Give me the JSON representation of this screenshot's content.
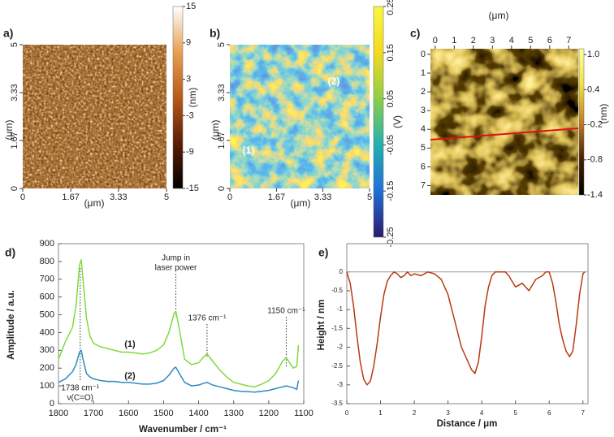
{
  "chart_data": [
    {
      "type": "image",
      "panel_label": "a)",
      "xlabel": "(μm)",
      "ylabel": "(μm)",
      "xlim": [
        0,
        5
      ],
      "ylim": [
        0,
        5
      ],
      "xticks": [
        0,
        1.67,
        3.33,
        5
      ],
      "yticks": [
        0,
        1.67,
        3.33,
        5
      ],
      "colorbar_label": "(nm)",
      "clim": [
        -15,
        15
      ],
      "cbar_ticks": [
        15,
        9,
        3,
        -3,
        -9,
        -15
      ],
      "colormap": [
        "#000000",
        "#5a1e05",
        "#b85a1a",
        "#e8a050",
        "#ffffff"
      ]
    },
    {
      "type": "image",
      "panel_label": "b)",
      "xlabel": "(μm)",
      "ylabel": "(μm)",
      "xlim": [
        0,
        5
      ],
      "ylim": [
        0,
        5
      ],
      "xticks": [
        0,
        1.67,
        3.33,
        5
      ],
      "yticks": [
        0,
        1.67,
        3.33,
        5
      ],
      "colorbar_label": "(V)",
      "clim": [
        -0.25,
        0.25
      ],
      "cbar_ticks": [
        0.25,
        0.15,
        0.05,
        -0.05,
        -0.15,
        -0.25
      ],
      "colormap": [
        "#2b1b6e",
        "#1f6fd8",
        "#22b0b0",
        "#8ccf48",
        "#f5d820",
        "#f8f840"
      ],
      "annotations": [
        {
          "text": "(2)"
        },
        {
          "text": "(1)"
        }
      ]
    },
    {
      "type": "image",
      "panel_label": "c)",
      "xlabel": "(μm)",
      "x_axis_position": "top",
      "xlim": [
        -0.25,
        7.5
      ],
      "ylim": [
        7.5,
        -0.3
      ],
      "xticks": [
        0,
        1,
        2,
        3,
        4,
        5,
        6,
        7
      ],
      "yticks": [
        0,
        1,
        2,
        3,
        4,
        5,
        6,
        7
      ],
      "colorbar_label": "(nm)",
      "clim": [
        -1.4,
        1.1
      ],
      "cbar_ticks": [
        {
          "value": 1,
          "label": "1.0"
        },
        0.4,
        -0.2,
        -0.8,
        -1.4
      ],
      "colormap": [
        "#000000",
        "#4a2000",
        "#c08020",
        "#f0e040",
        "#ffffa0"
      ]
    },
    {
      "type": "line",
      "panel_label": "d)",
      "xlabel": "Wavenumber / cm⁻¹",
      "ylabel": "Amplitude / a.u.",
      "xlim": [
        1800,
        1100
      ],
      "ylim": [
        0,
        900
      ],
      "xticks": [
        1800,
        1700,
        1600,
        1500,
        1400,
        1300,
        1200,
        1100
      ],
      "yticks": [
        0,
        100,
        200,
        300,
        400,
        500,
        600,
        700,
        800,
        900
      ],
      "x": [
        1800,
        1780,
        1760,
        1750,
        1740,
        1735,
        1730,
        1720,
        1710,
        1700,
        1680,
        1660,
        1640,
        1620,
        1600,
        1580,
        1560,
        1540,
        1520,
        1500,
        1485,
        1470,
        1465,
        1455,
        1440,
        1420,
        1400,
        1385,
        1376,
        1360,
        1340,
        1320,
        1300,
        1280,
        1260,
        1240,
        1220,
        1200,
        1180,
        1160,
        1150,
        1140,
        1130,
        1120,
        1115
      ],
      "series": [
        {
          "name": "(1)",
          "color": "#7fdb3a",
          "values": [
            250,
            350,
            430,
            550,
            780,
            810,
            700,
            480,
            380,
            340,
            320,
            310,
            300,
            290,
            290,
            285,
            280,
            285,
            300,
            330,
            400,
            510,
            520,
            420,
            250,
            220,
            230,
            265,
            280,
            240,
            190,
            150,
            120,
            110,
            100,
            95,
            110,
            130,
            170,
            240,
            260,
            230,
            200,
            210,
            330
          ]
        },
        {
          "name": "(2)",
          "color": "#2e8bc0",
          "values": [
            120,
            140,
            180,
            220,
            290,
            300,
            250,
            170,
            150,
            140,
            130,
            125,
            125,
            120,
            120,
            115,
            110,
            110,
            115,
            130,
            160,
            200,
            205,
            170,
            120,
            100,
            105,
            115,
            120,
            105,
            95,
            85,
            75,
            70,
            68,
            65,
            70,
            75,
            85,
            95,
            100,
            95,
            90,
            80,
            130
          ]
        }
      ],
      "annotations": [
        {
          "text": [
            "Jump in",
            "laser power"
          ],
          "x": 1465
        },
        {
          "text": [
            "1376 cm⁻¹"
          ],
          "x": 1376
        },
        {
          "text": [
            "1150 cm⁻¹"
          ],
          "x": 1150
        },
        {
          "text": [
            "1738 cm⁻¹",
            "ν(C=O)"
          ],
          "x": 1738
        }
      ]
    },
    {
      "type": "line",
      "panel_label": "e)",
      "xlabel": "Distance / μm",
      "ylabel": "Height / nm",
      "xlim": [
        0,
        7.15
      ],
      "ylim": [
        -3.5,
        0.75
      ],
      "zero_line": true,
      "xticks": [
        0,
        1,
        2,
        3,
        4,
        5,
        6,
        7
      ],
      "yticks": [
        0,
        -0.5,
        -1,
        -1.5,
        -2,
        -2.5,
        -3,
        -3.5
      ],
      "x": [
        0,
        0.1,
        0.2,
        0.3,
        0.4,
        0.5,
        0.6,
        0.7,
        0.8,
        0.9,
        1.0,
        1.1,
        1.2,
        1.3,
        1.4,
        1.5,
        1.6,
        1.7,
        1.8,
        1.9,
        2.0,
        2.2,
        2.4,
        2.6,
        2.8,
        3.0,
        3.2,
        3.4,
        3.6,
        3.7,
        3.8,
        3.9,
        4.0,
        4.1,
        4.2,
        4.3,
        4.4,
        4.5,
        4.6,
        4.7,
        4.8,
        5.0,
        5.2,
        5.4,
        5.6,
        5.8,
        5.9,
        6.0,
        6.1,
        6.2,
        6.3,
        6.4,
        6.5,
        6.6,
        6.7,
        6.8,
        6.9,
        7.0,
        7.05
      ],
      "series": [
        {
          "color": "#b83a10",
          "values": [
            0,
            -0.3,
            -0.9,
            -1.7,
            -2.4,
            -2.85,
            -3.0,
            -2.9,
            -2.5,
            -1.9,
            -1.2,
            -0.6,
            -0.25,
            -0.1,
            0,
            -0.05,
            -0.15,
            -0.1,
            0,
            -0.1,
            -0.05,
            -0.1,
            0,
            -0.05,
            -0.2,
            -0.6,
            -1.3,
            -2.0,
            -2.4,
            -2.6,
            -2.7,
            -2.4,
            -1.7,
            -0.9,
            -0.4,
            -0.1,
            0,
            0,
            0,
            0,
            -0.1,
            -0.4,
            -0.3,
            -0.5,
            -0.2,
            -0.1,
            0,
            0,
            -0.3,
            -0.8,
            -1.4,
            -1.8,
            -2.1,
            -2.25,
            -2.1,
            -1.4,
            -0.6,
            -0.05,
            0
          ]
        }
      ]
    }
  ]
}
